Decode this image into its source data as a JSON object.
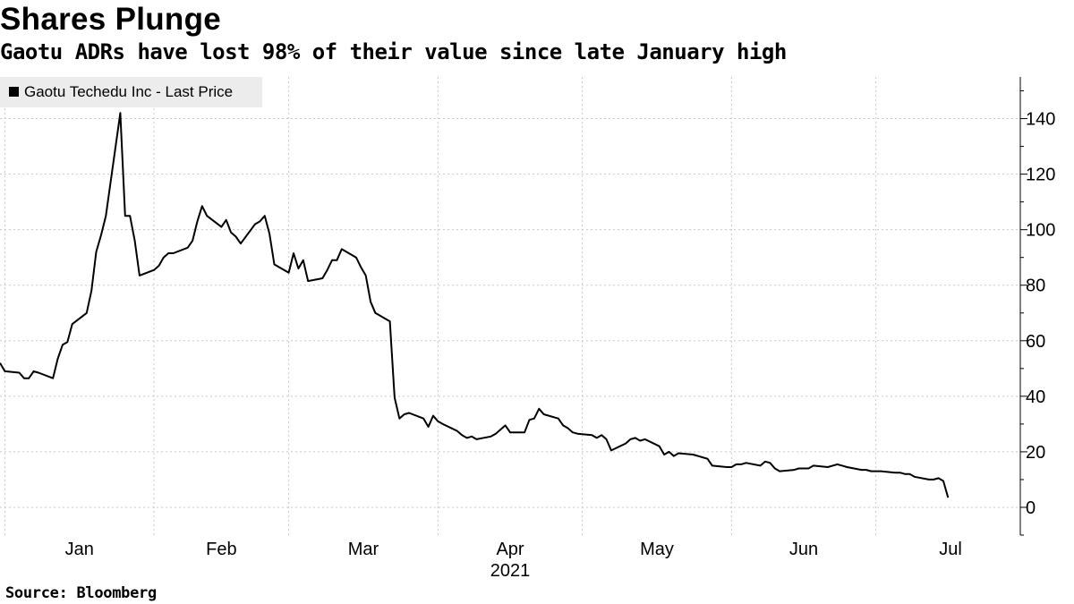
{
  "header": {
    "title": "Shares Plunge",
    "subtitle": "Gaotu ADRs have lost 98% of their value since late January high"
  },
  "footer": {
    "source": "Source: Bloomberg"
  },
  "colors": {
    "line": "#000000",
    "grid": "#c8c8c8",
    "legend_bg": "#ececec"
  },
  "chart_data": {
    "type": "line",
    "title": "Shares Plunge",
    "subtitle": "Gaotu ADRs have lost 98% of their value since late January high",
    "xlabel": "2021",
    "ylabel": "",
    "y_axis_side": "right",
    "ylim": [
      -10,
      155
    ],
    "yticks": [
      0,
      20,
      40,
      60,
      80,
      100,
      120,
      140
    ],
    "x_tick_labels": [
      "Jan",
      "Feb",
      "Mar",
      "Apr",
      "May",
      "Jun",
      "Jul"
    ],
    "year_label": "2021",
    "legend": {
      "position": "top-left",
      "entries": [
        "Gaotu Techedu Inc - Last Price"
      ]
    },
    "grid": true,
    "series": [
      {
        "name": "Gaotu Techedu Inc - Last Price",
        "x": [
          "2020-12-31",
          "2021-01-01",
          "2021-01-04",
          "2021-01-05",
          "2021-01-06",
          "2021-01-07",
          "2021-01-08",
          "2021-01-11",
          "2021-01-12",
          "2021-01-13",
          "2021-01-14",
          "2021-01-15",
          "2021-01-18",
          "2021-01-19",
          "2021-01-20",
          "2021-01-21",
          "2021-01-22",
          "2021-01-25",
          "2021-01-26",
          "2021-01-27",
          "2021-01-28",
          "2021-01-29",
          "2021-02-01",
          "2021-02-02",
          "2021-02-03",
          "2021-02-04",
          "2021-02-05",
          "2021-02-08",
          "2021-02-09",
          "2021-02-10",
          "2021-02-11",
          "2021-02-12",
          "2021-02-15",
          "2021-02-16",
          "2021-02-17",
          "2021-02-18",
          "2021-02-19",
          "2021-02-22",
          "2021-02-23",
          "2021-02-24",
          "2021-02-25",
          "2021-02-26",
          "2021-03-01",
          "2021-03-02",
          "2021-03-03",
          "2021-03-04",
          "2021-03-05",
          "2021-03-08",
          "2021-03-09",
          "2021-03-10",
          "2021-03-11",
          "2021-03-12",
          "2021-03-15",
          "2021-03-16",
          "2021-03-17",
          "2021-03-18",
          "2021-03-19",
          "2021-03-22",
          "2021-03-23",
          "2021-03-24",
          "2021-03-25",
          "2021-03-26",
          "2021-03-29",
          "2021-03-30",
          "2021-03-31",
          "2021-04-01",
          "2021-04-02",
          "2021-04-05",
          "2021-04-06",
          "2021-04-07",
          "2021-04-08",
          "2021-04-09",
          "2021-04-12",
          "2021-04-13",
          "2021-04-14",
          "2021-04-15",
          "2021-04-16",
          "2021-04-19",
          "2021-04-20",
          "2021-04-21",
          "2021-04-22",
          "2021-04-23",
          "2021-04-26",
          "2021-04-27",
          "2021-04-28",
          "2021-04-29",
          "2021-04-30",
          "2021-05-03",
          "2021-05-04",
          "2021-05-05",
          "2021-05-06",
          "2021-05-07",
          "2021-05-10",
          "2021-05-11",
          "2021-05-12",
          "2021-05-13",
          "2021-05-14",
          "2021-05-17",
          "2021-05-18",
          "2021-05-19",
          "2021-05-20",
          "2021-05-21",
          "2021-05-24",
          "2021-05-25",
          "2021-05-26",
          "2021-05-27",
          "2021-05-28",
          "2021-05-31",
          "2021-06-01",
          "2021-06-02",
          "2021-06-03",
          "2021-06-04",
          "2021-06-07",
          "2021-06-08",
          "2021-06-09",
          "2021-06-10",
          "2021-06-11",
          "2021-06-14",
          "2021-06-15",
          "2021-06-16",
          "2021-06-17",
          "2021-06-18",
          "2021-06-21",
          "2021-06-22",
          "2021-06-23",
          "2021-06-24",
          "2021-06-25",
          "2021-06-28",
          "2021-06-29",
          "2021-06-30",
          "2021-07-01",
          "2021-07-02",
          "2021-07-05",
          "2021-07-06",
          "2021-07-07",
          "2021-07-08",
          "2021-07-09",
          "2021-07-12",
          "2021-07-13",
          "2021-07-14",
          "2021-07-15",
          "2021-07-16"
        ],
        "values": [
          52,
          49,
          48.5,
          46.5,
          46.5,
          49,
          48.5,
          46.5,
          53.5,
          58.5,
          59.5,
          66,
          70,
          78,
          92,
          98,
          105,
          142,
          105,
          105,
          96,
          83.5,
          85.5,
          87,
          90,
          91.5,
          91.5,
          93.5,
          96,
          103,
          108.5,
          105,
          101,
          103.5,
          99,
          97.5,
          95,
          102,
          103,
          105,
          98.5,
          87.5,
          84.5,
          91.5,
          86,
          89,
          81.5,
          82.5,
          85.5,
          89,
          89,
          93,
          90,
          86.5,
          83.5,
          74,
          70,
          67,
          39.5,
          32,
          33.5,
          34,
          32,
          29,
          33,
          31,
          30,
          27.5,
          26,
          25,
          25.5,
          24.5,
          25.5,
          26.5,
          28,
          29.5,
          27,
          27,
          31.5,
          32,
          35.5,
          33.5,
          32,
          29.5,
          28.5,
          27,
          26.5,
          26,
          25,
          26,
          24.5,
          20.5,
          23,
          24.5,
          25,
          24,
          24.5,
          22,
          19,
          20,
          18.5,
          19.5,
          19,
          18.5,
          18,
          17.5,
          15,
          14.5,
          14.5,
          15.5,
          15.5,
          16,
          15,
          16.5,
          16,
          14,
          13,
          13.5,
          14,
          14,
          14,
          15,
          14.5,
          15,
          15.5,
          15,
          14.5,
          13.5,
          13.5,
          13,
          13,
          13,
          12.5,
          12.5,
          12,
          12,
          11,
          10,
          10,
          10.5,
          9.5,
          3.5
        ]
      }
    ]
  }
}
